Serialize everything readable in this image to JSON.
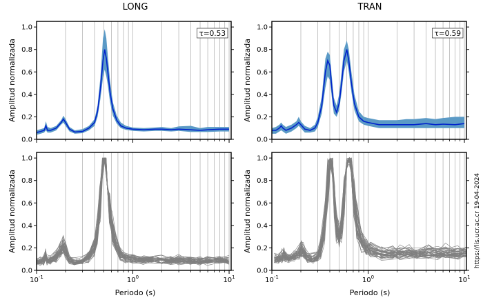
{
  "titles": {
    "left": "LONG",
    "right": "TRAN"
  },
  "watermark": "https://lis.ucr.ac.cr 19-04-2024",
  "colors": {
    "mean_line": "#0022cc",
    "band_fill": "#5b9ac6",
    "individual_lines": "#808080",
    "gridline": "#b5b5b5"
  },
  "chart_data": [
    {
      "type": "area",
      "title": "LONG",
      "annotation": "τ=0.53",
      "xlabel": "",
      "ylabel": "Amplitud normalizada",
      "xscale": "log",
      "xlim": [
        0.1,
        10.5
      ],
      "ylim": [
        0,
        1.05
      ],
      "x_ticks": [
        "10^-1",
        "10^0",
        "10^1"
      ],
      "y_ticks": [
        "0.0",
        "0.2",
        "0.4",
        "0.6",
        "0.8",
        "1.0"
      ],
      "vertical_grid_periods": [
        0.1,
        0.2,
        0.3,
        0.4,
        0.5,
        0.6,
        0.7,
        0.8,
        0.9,
        1,
        2,
        3,
        4,
        5,
        6,
        7,
        8,
        9,
        10
      ],
      "series": [
        {
          "name": "",
          "x": [
            0.1,
            0.11,
            0.12,
            0.125,
            0.13,
            0.14,
            0.16,
            0.18,
            0.19,
            0.2,
            0.22,
            0.25,
            0.3,
            0.35,
            0.4,
            0.43,
            0.46,
            0.49,
            0.51,
            0.53,
            0.55,
            0.58,
            0.62,
            0.68,
            0.75,
            0.85,
            1.0,
            1.3,
            1.7,
            2.0,
            2.5,
            3.0,
            4.0,
            5.0,
            6.0,
            8.0,
            10.0
          ],
          "y": [
            0.06,
            0.07,
            0.08,
            0.12,
            0.08,
            0.08,
            0.1,
            0.15,
            0.18,
            0.15,
            0.09,
            0.065,
            0.07,
            0.1,
            0.15,
            0.25,
            0.45,
            0.7,
            0.8,
            0.72,
            0.6,
            0.42,
            0.27,
            0.17,
            0.12,
            0.1,
            0.09,
            0.085,
            0.09,
            0.09,
            0.085,
            0.09,
            0.085,
            0.08,
            0.085,
            0.09,
            0.09
          ],
          "band_lower": [
            0.04,
            0.05,
            0.06,
            0.08,
            0.06,
            0.06,
            0.08,
            0.13,
            0.15,
            0.12,
            0.07,
            0.05,
            0.055,
            0.08,
            0.12,
            0.2,
            0.36,
            0.55,
            0.62,
            0.56,
            0.48,
            0.33,
            0.21,
            0.14,
            0.1,
            0.085,
            0.075,
            0.07,
            0.075,
            0.075,
            0.07,
            0.075,
            0.065,
            0.065,
            0.065,
            0.07,
            0.07
          ],
          "band_upper": [
            0.08,
            0.09,
            0.1,
            0.16,
            0.11,
            0.1,
            0.12,
            0.17,
            0.21,
            0.18,
            0.11,
            0.08,
            0.09,
            0.12,
            0.18,
            0.3,
            0.55,
            0.9,
            0.98,
            0.9,
            0.74,
            0.52,
            0.33,
            0.21,
            0.15,
            0.12,
            0.105,
            0.1,
            0.105,
            0.11,
            0.1,
            0.115,
            0.12,
            0.1,
            0.11,
            0.11,
            0.11
          ]
        }
      ]
    },
    {
      "type": "area",
      "title": "TRAN",
      "annotation": "τ=0.59",
      "xlabel": "",
      "ylabel": "Amplitud normalizada",
      "xscale": "log",
      "xlim": [
        0.1,
        10.5
      ],
      "ylim": [
        0,
        1.05
      ],
      "x_ticks": [
        "10^-1",
        "10^0",
        "10^1"
      ],
      "y_ticks": [
        "0.0",
        "0.2",
        "0.4",
        "0.6",
        "0.8",
        "1.0"
      ],
      "vertical_grid_periods": [
        0.1,
        0.2,
        0.3,
        0.4,
        0.5,
        0.6,
        0.7,
        0.8,
        0.9,
        1,
        2,
        3,
        4,
        5,
        6,
        7,
        8,
        9,
        10
      ],
      "series": [
        {
          "name": "",
          "x": [
            0.1,
            0.11,
            0.12,
            0.125,
            0.13,
            0.14,
            0.16,
            0.18,
            0.19,
            0.2,
            0.22,
            0.25,
            0.28,
            0.3,
            0.33,
            0.36,
            0.38,
            0.4,
            0.42,
            0.44,
            0.47,
            0.5,
            0.53,
            0.56,
            0.6,
            0.63,
            0.67,
            0.72,
            0.8,
            0.9,
            1.0,
            1.3,
            1.7,
            2.0,
            2.5,
            3.0,
            4.0,
            5.0,
            6.0,
            8.0,
            10.0
          ],
          "y": [
            0.08,
            0.08,
            0.1,
            0.12,
            0.1,
            0.08,
            0.1,
            0.13,
            0.15,
            0.13,
            0.09,
            0.08,
            0.1,
            0.15,
            0.3,
            0.6,
            0.7,
            0.66,
            0.45,
            0.3,
            0.24,
            0.32,
            0.5,
            0.7,
            0.8,
            0.7,
            0.5,
            0.32,
            0.2,
            0.16,
            0.15,
            0.13,
            0.13,
            0.13,
            0.13,
            0.13,
            0.14,
            0.13,
            0.135,
            0.13,
            0.14
          ],
          "band_lower": [
            0.05,
            0.05,
            0.07,
            0.08,
            0.07,
            0.05,
            0.07,
            0.1,
            0.12,
            0.1,
            0.06,
            0.06,
            0.07,
            0.11,
            0.23,
            0.46,
            0.56,
            0.53,
            0.37,
            0.23,
            0.2,
            0.26,
            0.42,
            0.6,
            0.7,
            0.6,
            0.42,
            0.26,
            0.16,
            0.13,
            0.12,
            0.1,
            0.1,
            0.1,
            0.1,
            0.1,
            0.1,
            0.1,
            0.1,
            0.1,
            0.1
          ],
          "band_upper": [
            0.1,
            0.11,
            0.13,
            0.15,
            0.13,
            0.11,
            0.13,
            0.16,
            0.2,
            0.16,
            0.12,
            0.1,
            0.13,
            0.2,
            0.38,
            0.72,
            0.78,
            0.75,
            0.55,
            0.37,
            0.3,
            0.4,
            0.6,
            0.8,
            0.88,
            0.8,
            0.6,
            0.4,
            0.25,
            0.2,
            0.19,
            0.17,
            0.17,
            0.17,
            0.18,
            0.18,
            0.19,
            0.18,
            0.19,
            0.2,
            0.2
          ]
        }
      ]
    },
    {
      "type": "line",
      "title": "",
      "xlabel": "Periodo (s)",
      "ylabel": "Amplitud normalizada",
      "xscale": "log",
      "xlim": [
        0.1,
        10.5
      ],
      "ylim": [
        0,
        1.05
      ],
      "x_ticks": [
        "10^-1",
        "10^0",
        "10^1"
      ],
      "y_ticks": [
        "0.0",
        "0.2",
        "0.4",
        "0.6",
        "0.8",
        "1.0"
      ],
      "vertical_grid_periods": [
        0.1,
        0.2,
        0.3,
        0.4,
        0.5,
        0.6,
        0.7,
        0.8,
        0.9,
        1,
        2,
        3,
        4,
        5,
        6,
        7,
        8,
        9,
        10
      ],
      "series_count": 40,
      "series_template": {
        "x": [
          0.1,
          0.11,
          0.12,
          0.125,
          0.13,
          0.14,
          0.16,
          0.18,
          0.19,
          0.2,
          0.22,
          0.25,
          0.3,
          0.35,
          0.4,
          0.43,
          0.46,
          0.49,
          0.51,
          0.53,
          0.55,
          0.58,
          0.62,
          0.68,
          0.75,
          0.85,
          1.0,
          1.3,
          1.7,
          2.0,
          2.5,
          3.0,
          4.0,
          5.0,
          6.0,
          8.0,
          10.0
        ],
        "y": [
          0.07,
          0.08,
          0.09,
          0.13,
          0.09,
          0.09,
          0.12,
          0.18,
          0.22,
          0.18,
          0.1,
          0.07,
          0.08,
          0.12,
          0.2,
          0.33,
          0.6,
          0.92,
          1.0,
          0.92,
          0.78,
          0.55,
          0.35,
          0.21,
          0.14,
          0.11,
          0.1,
          0.09,
          0.09,
          0.09,
          0.085,
          0.09,
          0.085,
          0.08,
          0.085,
          0.09,
          0.09
        ]
      }
    },
    {
      "type": "line",
      "title": "",
      "xlabel": "Periodo (s)",
      "ylabel": "Amplitud normalizada",
      "xscale": "log",
      "xlim": [
        0.1,
        10.5
      ],
      "ylim": [
        0,
        1.05
      ],
      "x_ticks": [
        "10^-1",
        "10^0",
        "10^1"
      ],
      "y_ticks": [
        "0.0",
        "0.2",
        "0.4",
        "0.6",
        "0.8",
        "1.0"
      ],
      "vertical_grid_periods": [
        0.1,
        0.2,
        0.3,
        0.4,
        0.5,
        0.6,
        0.7,
        0.8,
        0.9,
        1,
        2,
        3,
        4,
        5,
        6,
        7,
        8,
        9,
        10
      ],
      "series_count": 40,
      "series_template": {
        "x": [
          0.1,
          0.11,
          0.12,
          0.125,
          0.13,
          0.14,
          0.16,
          0.18,
          0.19,
          0.2,
          0.22,
          0.25,
          0.28,
          0.3,
          0.33,
          0.36,
          0.38,
          0.4,
          0.42,
          0.44,
          0.47,
          0.5,
          0.53,
          0.56,
          0.6,
          0.63,
          0.67,
          0.72,
          0.8,
          0.9,
          1.0,
          1.3,
          1.7,
          2.0,
          2.5,
          3.0,
          4.0,
          5.0,
          6.0,
          8.0,
          10.0
        ],
        "y": [
          0.1,
          0.1,
          0.12,
          0.14,
          0.12,
          0.1,
          0.12,
          0.16,
          0.18,
          0.16,
          0.11,
          0.1,
          0.12,
          0.18,
          0.38,
          0.8,
          0.95,
          0.9,
          0.6,
          0.38,
          0.3,
          0.4,
          0.65,
          0.92,
          1.0,
          0.9,
          0.65,
          0.42,
          0.26,
          0.2,
          0.18,
          0.15,
          0.15,
          0.15,
          0.15,
          0.15,
          0.16,
          0.15,
          0.155,
          0.15,
          0.16
        ]
      }
    }
  ]
}
